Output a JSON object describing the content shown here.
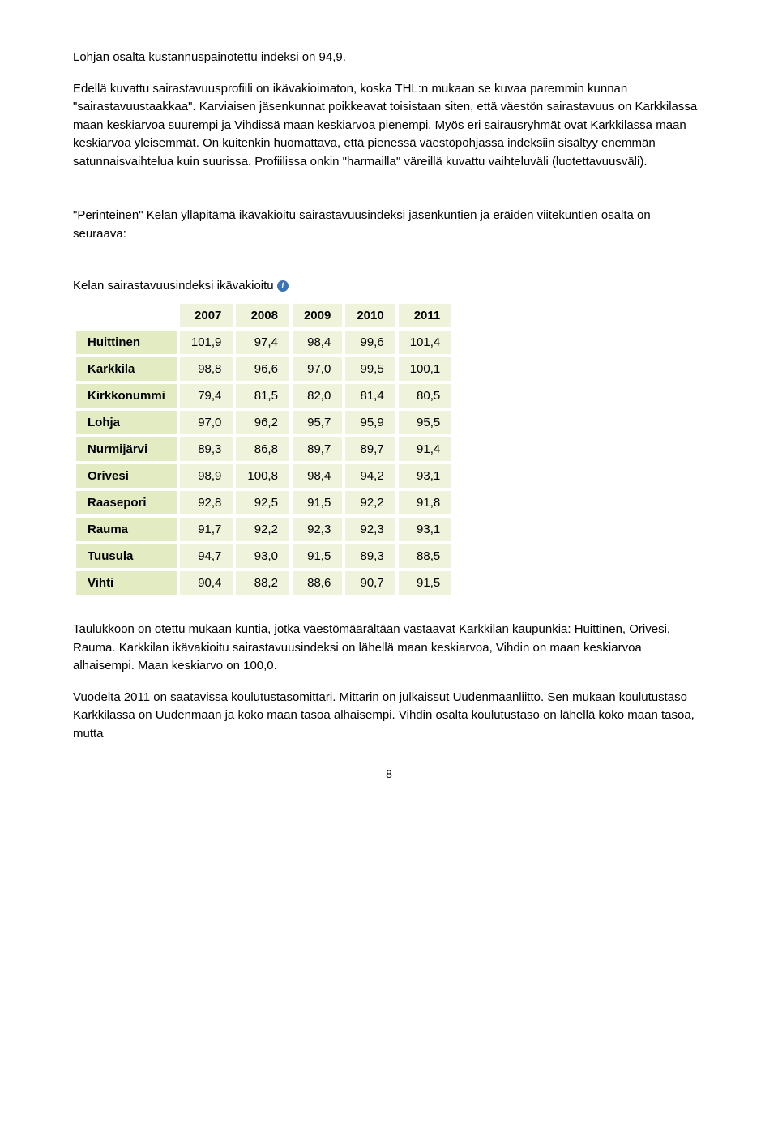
{
  "paragraphs": {
    "p1": "Lohjan osalta kustannuspainotettu indeksi on 94,9.",
    "p2": "Edellä kuvattu sairastavuusprofiili on ikävakioimaton, koska THL:n mukaan se kuvaa paremmin kunnan \"sairastavuustaakkaa\". Karviaisen jäsenkunnat poikkeavat toisistaan siten, että väestön sairastavuus on Karkkilassa maan keskiarvoa suurempi ja Vihdissä maan keskiarvoa pienempi. Myös eri sairausryhmät ovat Karkkilassa maan keskiarvoa yleisemmät. On kuitenkin huomattava, että pienessä väestöpohjassa indeksiin sisältyy enemmän satunnaisvaihtelua kuin suurissa. Profiilissa onkin \"harmailla\" väreillä kuvattu vaihteluväli (luotettavuusväli).",
    "p3": "\"Perinteinen\" Kelan ylläpitämä ikävakioitu sairastavuusindeksi jäsenkuntien ja eräiden viitekuntien osalta on seuraava:",
    "p4": "Taulukkoon on otettu mukaan kuntia, jotka väestömäärältään vastaavat Karkkilan kaupunkia: Huittinen, Orivesi, Rauma. Karkkilan ikävakioitu sairastavuusindeksi on lähellä maan keskiarvoa, Vihdin on maan keskiarvoa alhaisempi. Maan keskiarvo on 100,0.",
    "p5": "Vuodelta 2011 on saatavissa koulutustasomittari. Mittarin on julkaissut Uudenmaanliitto. Sen mukaan koulutustaso Karkkilassa on Uudenmaan ja koko maan tasoa alhaisempi. Vihdin osalta koulutustaso on lähellä koko maan tasoa, mutta"
  },
  "table": {
    "title": "Kelan sairastavuusindeksi ikävakioitu",
    "columns": [
      "2007",
      "2008",
      "2009",
      "2010",
      "2011"
    ],
    "rows": [
      {
        "label": "Huittinen",
        "values": [
          "101,9",
          "97,4",
          "98,4",
          "99,6",
          "101,4"
        ]
      },
      {
        "label": "Karkkila",
        "values": [
          "98,8",
          "96,6",
          "97,0",
          "99,5",
          "100,1"
        ]
      },
      {
        "label": "Kirkkonummi",
        "values": [
          "79,4",
          "81,5",
          "82,0",
          "81,4",
          "80,5"
        ]
      },
      {
        "label": "Lohja",
        "values": [
          "97,0",
          "96,2",
          "95,7",
          "95,9",
          "95,5"
        ]
      },
      {
        "label": "Nurmijärvi",
        "values": [
          "89,3",
          "86,8",
          "89,7",
          "89,7",
          "91,4"
        ]
      },
      {
        "label": "Orivesi",
        "values": [
          "98,9",
          "100,8",
          "98,4",
          "94,2",
          "93,1"
        ]
      },
      {
        "label": "Raasepori",
        "values": [
          "92,8",
          "92,5",
          "91,5",
          "92,2",
          "91,8"
        ]
      },
      {
        "label": "Rauma",
        "values": [
          "91,7",
          "92,2",
          "92,3",
          "92,3",
          "93,1"
        ]
      },
      {
        "label": "Tuusula",
        "values": [
          "94,7",
          "93,0",
          "91,5",
          "89,3",
          "88,5"
        ]
      },
      {
        "label": "Vihti",
        "values": [
          "90,4",
          "88,2",
          "88,6",
          "90,7",
          "91,5"
        ]
      }
    ],
    "header_bg": "#eff3db",
    "rowhdr_bg": "#e3ebc3",
    "cell_bg": "#eff3db"
  },
  "info_icon": {
    "glyph": "i",
    "bg": "#3b74b5",
    "fg": "#ffffff"
  },
  "page_number": "8"
}
